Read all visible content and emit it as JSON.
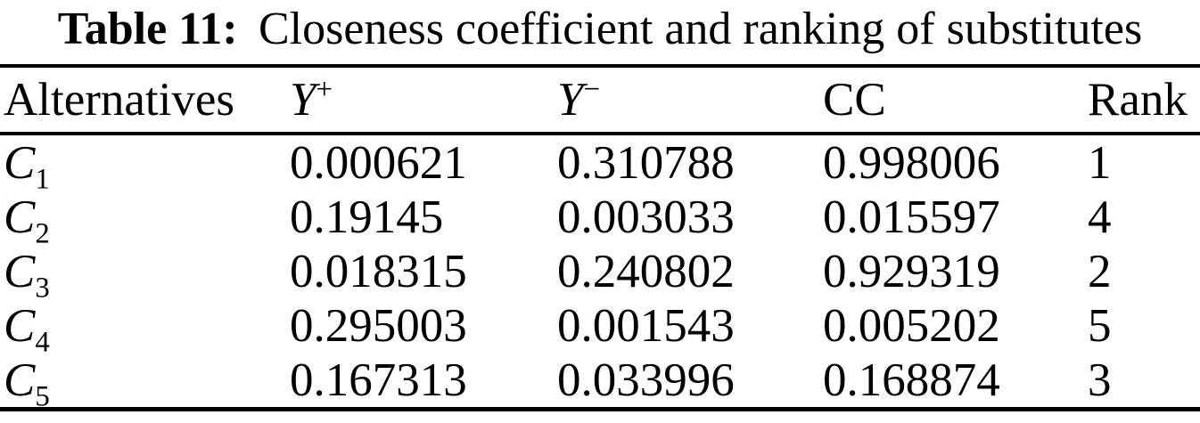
{
  "title": {
    "label": "Table 11:",
    "caption": "Closeness coefficient and ranking of substitutes"
  },
  "table": {
    "headers": {
      "alternatives": "Alternatives",
      "y_plus_base": "Y",
      "y_plus_sup": "+",
      "y_minus_base": "Y",
      "y_minus_sup": "−",
      "cc": "CC",
      "rank": "Rank"
    },
    "rows": [
      {
        "alt_base": "C",
        "alt_sub": "1",
        "y_plus": "0.000621",
        "y_minus": "0.310788",
        "cc": "0.998006",
        "rank": "1"
      },
      {
        "alt_base": "C",
        "alt_sub": "2",
        "y_plus": "0.19145",
        "y_minus": "0.003033",
        "cc": "0.015597",
        "rank": "4"
      },
      {
        "alt_base": "C",
        "alt_sub": "3",
        "y_plus": "0.018315",
        "y_minus": "0.240802",
        "cc": "0.929319",
        "rank": "2"
      },
      {
        "alt_base": "C",
        "alt_sub": "4",
        "y_plus": "0.295003",
        "y_minus": "0.001543",
        "cc": "0.005202",
        "rank": "5"
      },
      {
        "alt_base": "C",
        "alt_sub": "5",
        "y_plus": "0.167313",
        "y_minus": "0.033996",
        "cc": "0.168874",
        "rank": "3"
      }
    ]
  },
  "colors": {
    "text": "#000000",
    "background": "#ffffff",
    "rule": "#000000"
  }
}
